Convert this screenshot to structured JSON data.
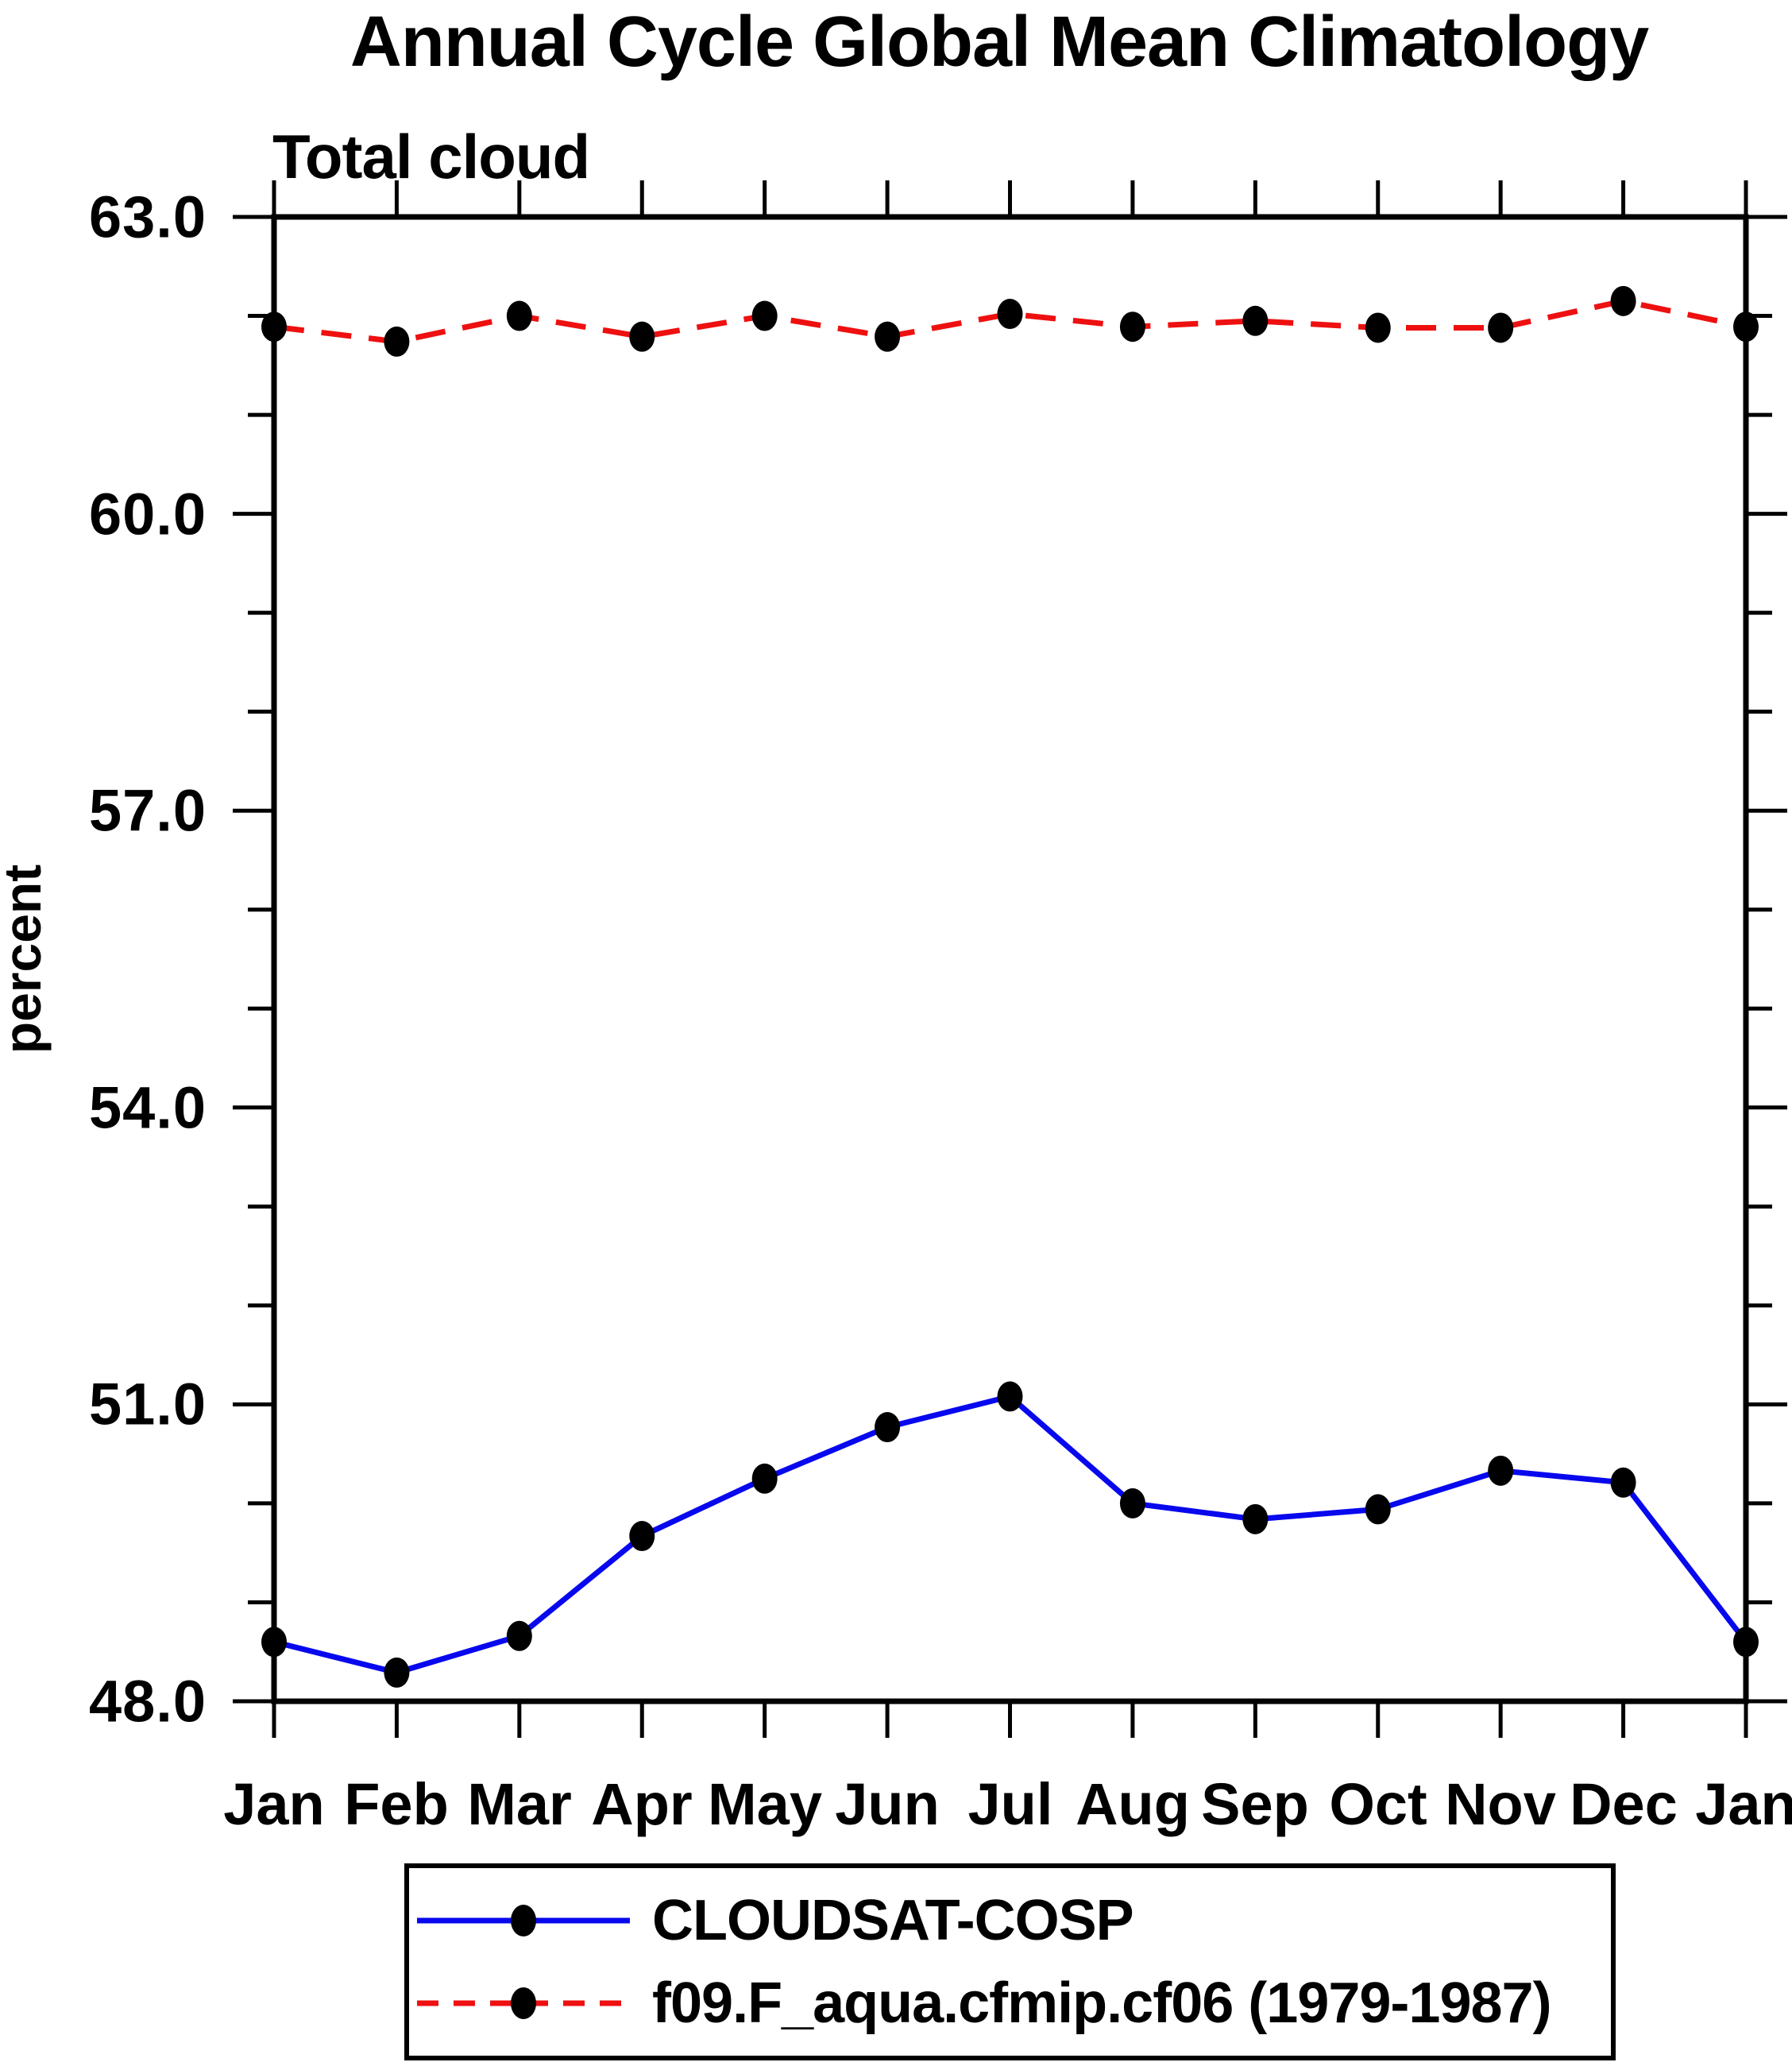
{
  "chart_data": {
    "type": "line",
    "title": "Annual Cycle Global Mean Climatology",
    "subtitle": "Total cloud",
    "ylabel": "percent",
    "categories": [
      "Jan",
      "Feb",
      "Mar",
      "Apr",
      "May",
      "Jun",
      "Jul",
      "Aug",
      "Sep",
      "Oct",
      "Nov",
      "Dec",
      "Jan"
    ],
    "ylim": [
      48.0,
      63.0
    ],
    "y_major_ticks": [
      48.0,
      51.0,
      54.0,
      57.0,
      60.0,
      63.0
    ],
    "y_tick_labels": [
      "48.0",
      "51.0",
      "54.0",
      "57.0",
      "60.0",
      "63.0"
    ],
    "y_minor_step": 1.0,
    "grid": false,
    "legend_position": "bottom",
    "axis_color": "#000000",
    "marker_color": "#000000",
    "series": [
      {
        "name": "CLOUDSAT-COSP",
        "color": "#0808ee",
        "style": "solid",
        "marker": "filled-circle",
        "values": [
          48.6,
          48.29,
          48.66,
          49.67,
          50.25,
          50.77,
          51.08,
          50.0,
          49.84,
          49.94,
          50.33,
          50.21,
          48.6
        ]
      },
      {
        "name": "f09.F_aqua.cfmip.cf06 (1979-1987)",
        "color": "#ee1010",
        "style": "dashed",
        "marker": "filled-circle",
        "values": [
          61.89,
          61.74,
          62.0,
          61.79,
          62.0,
          61.79,
          62.02,
          61.89,
          61.95,
          61.88,
          61.88,
          62.15,
          61.89
        ]
      }
    ]
  }
}
